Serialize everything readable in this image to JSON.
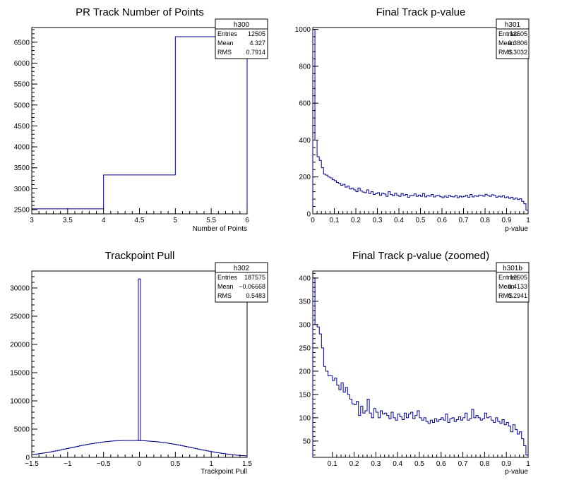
{
  "chart_data": [
    {
      "id": "h300",
      "type": "histogram-step",
      "title": "PR Track Number of Points",
      "xlabel": "Number of Points",
      "ylabel": "",
      "xlim": [
        3,
        6
      ],
      "ylim": [
        2400,
        6850
      ],
      "xticks": [
        3,
        3.5,
        4,
        4.5,
        5,
        5.5,
        6
      ],
      "xtick_labels": [
        "3",
        "3.5",
        "4",
        "4.5",
        "5",
        "5.5",
        "6"
      ],
      "yticks": [
        2500,
        3000,
        3500,
        4000,
        4500,
        5000,
        5500,
        6000,
        6500
      ],
      "ytick_labels": [
        "2500",
        "3000",
        "3500",
        "4000",
        "4500",
        "5000",
        "5500",
        "6000",
        "6500"
      ],
      "bins": [
        3,
        4,
        5,
        6
      ],
      "values": [
        2520,
        3330,
        6630
      ],
      "stats": {
        "name": "h300",
        "rows": [
          [
            "Entries",
            "12505"
          ],
          [
            "Mean",
            "4.327"
          ],
          [
            "RMS",
            "0.7914"
          ]
        ]
      }
    },
    {
      "id": "h301",
      "type": "histogram-step",
      "title": "Final Track p-value",
      "xlabel": "p-value",
      "ylabel": "",
      "xlim": [
        0,
        1
      ],
      "ylim": [
        0,
        1010
      ],
      "xticks": [
        0,
        0.1,
        0.2,
        0.3,
        0.4,
        0.5,
        0.6,
        0.7,
        0.8,
        0.9,
        1
      ],
      "xtick_labels": [
        "0",
        "0.1",
        "0.2",
        "0.3",
        "0.4",
        "0.5",
        "0.6",
        "0.7",
        "0.8",
        "0.9",
        "1"
      ],
      "yticks": [
        0,
        200,
        400,
        600,
        800,
        1000
      ],
      "ytick_labels": [
        "0",
        "200",
        "400",
        "600",
        "800",
        "1000"
      ],
      "bin_range": [
        0,
        1
      ],
      "values": [
        1000,
        400,
        310,
        290,
        250,
        215,
        210,
        200,
        195,
        185,
        180,
        170,
        165,
        155,
        160,
        145,
        150,
        135,
        140,
        130,
        120,
        140,
        125,
        118,
        115,
        130,
        110,
        120,
        105,
        110,
        115,
        100,
        112,
        108,
        95,
        120,
        105,
        98,
        112,
        100,
        95,
        110,
        100,
        105,
        90,
        100,
        98,
        108,
        95,
        102,
        95,
        110,
        92,
        100,
        96,
        105,
        92,
        98,
        100,
        93,
        88,
        96,
        90,
        100,
        94,
        92,
        100,
        88,
        96,
        92,
        95,
        100,
        90,
        105,
        92,
        98,
        95,
        102,
        100,
        96,
        106,
        100,
        95,
        104,
        100,
        90,
        96,
        92,
        98,
        88,
        92,
        84,
        90,
        80,
        86,
        78,
        82,
        68,
        55,
        20
      ]
    },
    {
      "id": "h302",
      "type": "histogram-step",
      "title": "Trackpoint Pull",
      "xlabel": "Trackpoint Pull",
      "ylabel": "",
      "xlim": [
        -1.5,
        1.5
      ],
      "ylim": [
        0,
        33000
      ],
      "xticks": [
        -1.5,
        -1,
        -0.5,
        0,
        0.5,
        1,
        1.5
      ],
      "xtick_labels": [
        "−1.5",
        "−1",
        "−0.5",
        "0",
        "0.5",
        "1",
        "1.5"
      ],
      "yticks": [
        0,
        5000,
        10000,
        15000,
        20000,
        25000,
        30000
      ],
      "ytick_labels": [
        "0",
        "5000",
        "10000",
        "15000",
        "20000",
        "25000",
        "30000"
      ],
      "bin_range": [
        -1.5,
        1.5
      ],
      "peak": {
        "x": 0,
        "value": 31600
      },
      "values": [
        500,
        550,
        600,
        650,
        700,
        760,
        820,
        880,
        950,
        1020,
        1090,
        1160,
        1240,
        1320,
        1400,
        1480,
        1560,
        1640,
        1720,
        1800,
        1880,
        1960,
        2040,
        2120,
        2190,
        2260,
        2330,
        2400,
        2460,
        2520,
        2580,
        2630,
        2680,
        2730,
        2780,
        2820,
        2860,
        2890,
        2920,
        2950,
        2960,
        2970,
        2980,
        2980,
        2990,
        2990,
        2990,
        2980,
        2980,
        2970,
        2960,
        2950,
        2930,
        2910,
        2880,
        2850,
        2820,
        2790,
        2750,
        2710,
        2660,
        2610,
        2560,
        2500,
        2440,
        2380,
        2310,
        2240,
        2170,
        2100,
        2020,
        1940,
        1860,
        1780,
        1700,
        1620,
        1540,
        1460,
        1380,
        1300,
        1230,
        1160,
        1090,
        1020,
        950,
        880,
        820,
        760,
        700,
        650,
        600,
        550,
        500,
        460,
        420,
        380,
        350,
        320,
        290,
        260
      ],
      "stats": {
        "name": "h302",
        "rows": [
          [
            "Entries",
            "187575"
          ],
          [
            "Mean",
            "−0.06668"
          ],
          [
            "RMS",
            "0.5483"
          ]
        ]
      }
    },
    {
      "id": "h301b",
      "type": "histogram-step",
      "title": "Final Track p-value (zoomed)",
      "xlabel": "p-value",
      "ylabel": "",
      "xlim": [
        0.01,
        1
      ],
      "ylim": [
        15,
        415
      ],
      "xticks": [
        0.1,
        0.2,
        0.3,
        0.4,
        0.5,
        0.6,
        0.7,
        0.8,
        0.9,
        1
      ],
      "xtick_labels": [
        "0.1",
        "0.2",
        "0.3",
        "0.4",
        "0.5",
        "0.6",
        "0.7",
        "0.8",
        "0.9",
        "1"
      ],
      "yticks": [
        50,
        100,
        150,
        200,
        250,
        300,
        350,
        400
      ],
      "ytick_labels": [
        "50",
        "100",
        "150",
        "200",
        "250",
        "300",
        "350",
        "400"
      ],
      "bin_range": [
        0.01,
        1
      ],
      "values": [
        400,
        300,
        295,
        280,
        250,
        210,
        200,
        190,
        190,
        180,
        185,
        170,
        160,
        175,
        155,
        165,
        150,
        140,
        130,
        128,
        135,
        105,
        125,
        110,
        115,
        140,
        110,
        100,
        120,
        112,
        100,
        115,
        108,
        110,
        105,
        98,
        112,
        100,
        95,
        108,
        102,
        96,
        110,
        100,
        108,
        112,
        98,
        105,
        115,
        100,
        95,
        100,
        92,
        88,
        95,
        90,
        98,
        92,
        96,
        100,
        95,
        108,
        90,
        98,
        100,
        92,
        96,
        102,
        95,
        100,
        110,
        95,
        98,
        118,
        100,
        105,
        100,
        95,
        98,
        110,
        100,
        102,
        95,
        90,
        100,
        92,
        88,
        96,
        85,
        90,
        82,
        70,
        85,
        75,
        65,
        70,
        55,
        40,
        20
      ]
    }
  ],
  "stats_boxes": {
    "h300": {
      "name": "h300",
      "entries_label": "Entries",
      "entries": "12505",
      "mean_label": "Mean",
      "mean": "4.327",
      "rms_label": "RMS",
      "rms": "0.7914"
    },
    "h301": {
      "name": "h301",
      "entries_label": "Entries",
      "entries": "12505",
      "mean_label": "Mean",
      "mean": "0.3806",
      "rms_label": "RMS",
      "rms": "0.3032"
    },
    "h302": {
      "name": "h302",
      "entries_label": "Entries",
      "entries": "187575",
      "mean_label": "Mean",
      "mean": "−0.06668",
      "rms_label": "RMS",
      "rms": "0.5483"
    },
    "h301b": {
      "name": "h301b",
      "entries_label": "Entries",
      "entries": "12505",
      "mean_label": "Mean",
      "mean": "0.4133",
      "rms_label": "RMS",
      "rms": "0.2941"
    }
  },
  "colors": {
    "line": "#00008b",
    "frame": "#000000",
    "background": "#ffffff"
  }
}
